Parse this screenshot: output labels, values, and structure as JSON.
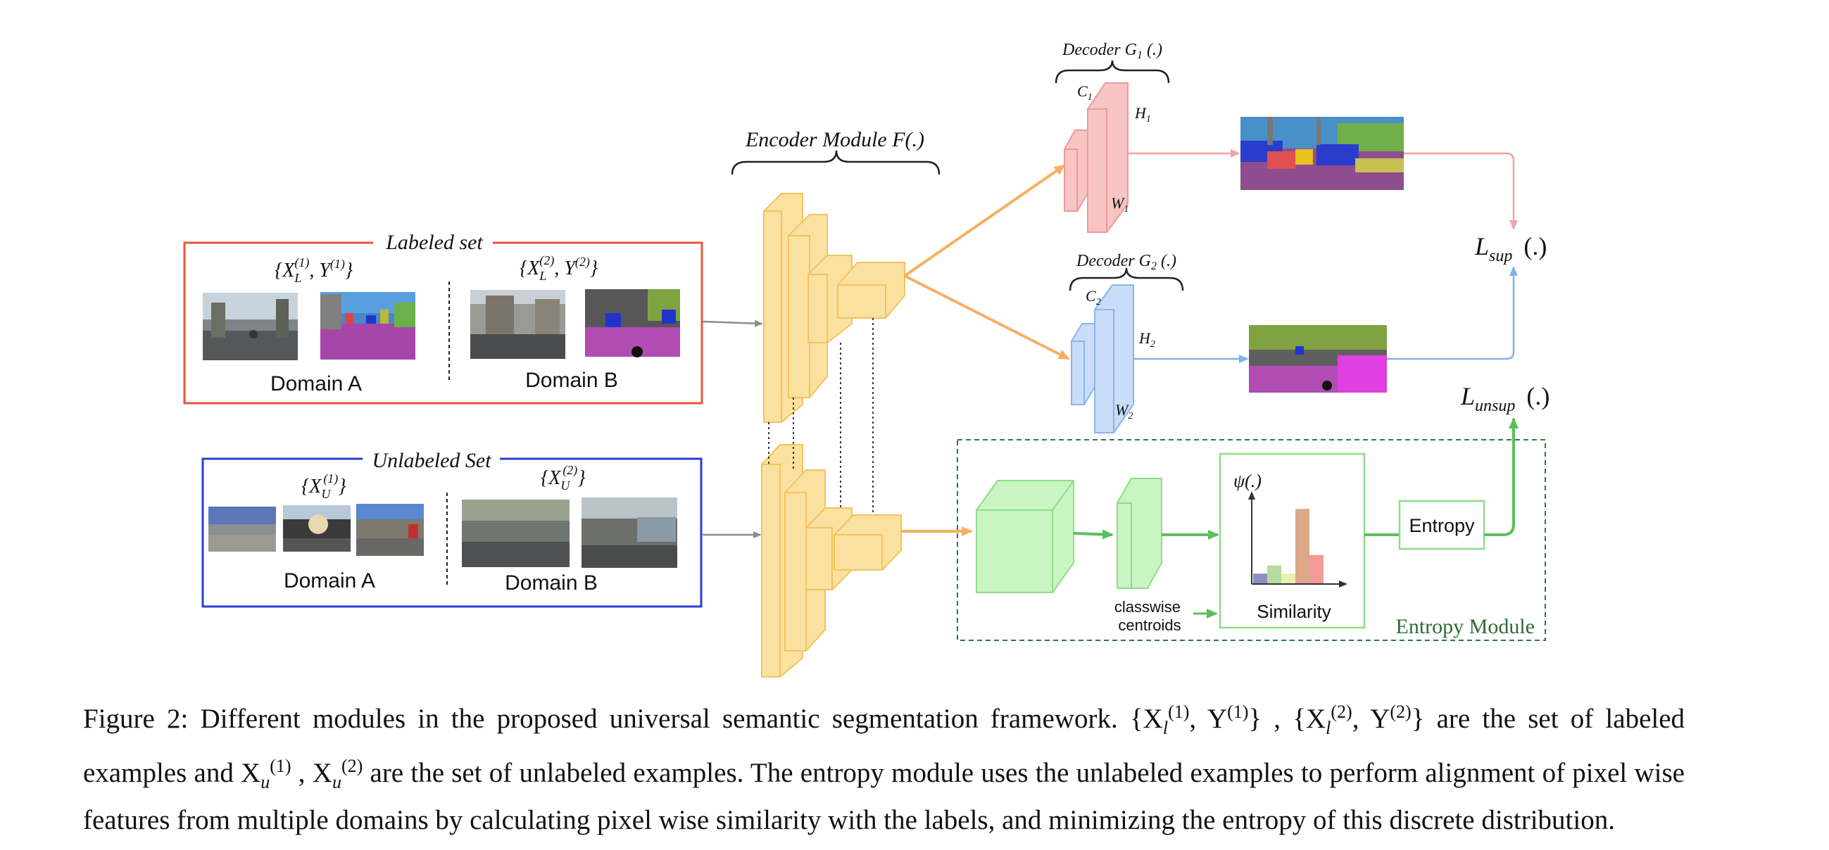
{
  "figure": {
    "labeled_set": {
      "title": "Labeled set",
      "sets": [
        {
          "label_main": "{X",
          "label_sub": "L",
          "label_sup": "(1)",
          "label_rest": ", Y",
          "label_rest_sup": "(1)",
          "label_end": "}",
          "domain": "Domain A"
        },
        {
          "label_main": "{X",
          "label_sub": "L",
          "label_sup": "(2)",
          "label_rest": ", Y",
          "label_rest_sup": "(2)",
          "label_end": "}",
          "domain": "Domain B"
        }
      ]
    },
    "unlabeled_set": {
      "title": "Unlabeled Set",
      "sets": [
        {
          "label_main": "{X",
          "label_sub": "U",
          "label_sup": "(1)",
          "label_end": "}",
          "domain": "Domain A"
        },
        {
          "label_main": "{X",
          "label_sub": "U",
          "label_sup": "(2)",
          "label_end": "}",
          "domain": "Domain B"
        }
      ]
    },
    "encoder": {
      "label": "Encoder  Module  F(.)"
    },
    "decoder1": {
      "label_main": "Decoder  G",
      "label_sub": "1",
      "label_end": " (.)",
      "c": "C",
      "c_sub": "1",
      "h": "H",
      "h_sub": "1",
      "w": "W",
      "w_sub": "1"
    },
    "decoder2": {
      "label_main": "Decoder  G",
      "label_sub": "2",
      "label_end": " (.)",
      "c": "C",
      "c_sub": "2",
      "h": "H",
      "h_sub": "2",
      "w": "W",
      "w_sub": "2"
    },
    "loss_sup": {
      "main": "L",
      "sub": "sup",
      "end": "(.)"
    },
    "loss_unsup": {
      "main": "L",
      "sub": "unsup",
      "end": "(.)"
    },
    "entropy_module": {
      "title": "Entropy Module",
      "centroids": [
        "classwise",
        "centroids"
      ],
      "psi": "ψ(.)",
      "similarity": "Similarity",
      "entropy": "Entropy",
      "bars": [
        {
          "value": 0.12,
          "color": "#8e8fc0"
        },
        {
          "value": 0.22,
          "color": "#b5dc9e"
        },
        {
          "value": 0.12,
          "color": "#eeeeb0"
        },
        {
          "value": 0.92,
          "color": "#dba888"
        },
        {
          "value": 0.35,
          "color": "#f29a96"
        }
      ]
    },
    "colors": {
      "labeled_border": "#e8563c",
      "unlabeled_border": "#2a3fd1",
      "encoder": "#fbe1a0",
      "decoder1": "#f8c4c4",
      "decoder2": "#c9dcf8",
      "entropy": "#5cbf5c",
      "arrow_orange": "#f5b060"
    }
  },
  "caption": {
    "intro": "Figure 2: Different modules in the proposed universal semantic segmentation framework.",
    "labeled_sets": "{X",
    "l_sub": "l",
    "s1": "(1)",
    "mid1": ", Y",
    "s1b": "(1)",
    "close1": "} , {X",
    "s2": "(2)",
    "mid2": ", Y",
    "s2b": "(2)",
    "close2": "}",
    "text_after_labeled": " are the set of labeled examples and X",
    "u_sub": "u",
    "u1": "(1)",
    "comma": " , X",
    "u2": "(2)",
    "text_rest": " are the set of unlabeled examples. The entropy module uses the unlabeled examples to perform alignment of pixel wise features from multiple domains by calculating pixel wise similarity with the labels, and minimizing the entropy of this discrete distribution."
  }
}
